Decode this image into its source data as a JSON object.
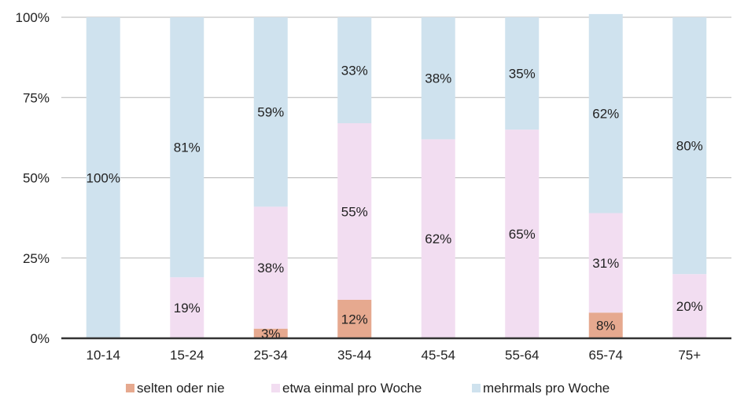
{
  "chart_data": {
    "type": "bar",
    "stacked": true,
    "percent_stacked": true,
    "categories": [
      "10-14",
      "15-24",
      "25-34",
      "35-44",
      "45-54",
      "55-64",
      "65-74",
      "75+"
    ],
    "series": [
      {
        "name": "selten oder nie",
        "color": "#e6a98f",
        "values": [
          0,
          0,
          3,
          12,
          0,
          0,
          8,
          0
        ],
        "labels": [
          "",
          "",
          "3%",
          "12%",
          "",
          "",
          "8%",
          ""
        ]
      },
      {
        "name": "etwa einmal pro Woche",
        "color": "#f2ddf1",
        "values": [
          0,
          19,
          38,
          55,
          62,
          65,
          31,
          20
        ],
        "labels": [
          "",
          "19%",
          "38%",
          "55%",
          "62%",
          "65%",
          "31%",
          "20%"
        ]
      },
      {
        "name": "mehrmals pro Woche",
        "color": "#cfe2ee",
        "values": [
          100,
          81,
          59,
          33,
          38,
          35,
          62,
          80
        ],
        "labels": [
          "100%",
          "81%",
          "59%",
          "33%",
          "38%",
          "35%",
          "62%",
          "80%"
        ]
      }
    ],
    "yticks": [
      "0%",
      "25%",
      "50%",
      "75%",
      "100%"
    ],
    "ylim": [
      0,
      100
    ],
    "grid": true,
    "legend_position": "bottom",
    "title": "",
    "xlabel": "",
    "ylabel": ""
  }
}
